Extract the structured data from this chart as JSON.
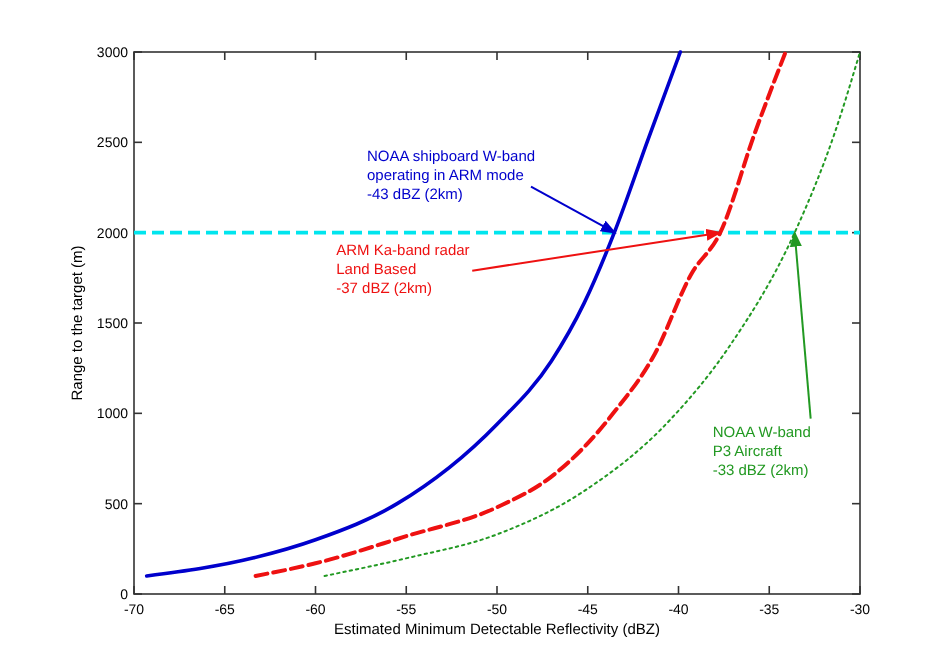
{
  "chart_data": {
    "type": "line",
    "xlabel": "Estimated Minimum Detectable Reflectivity (dBZ)",
    "ylabel": "Range to the target (m)",
    "xlim": [
      -70,
      -30
    ],
    "xticks": [
      -70,
      -65,
      -60,
      -55,
      -50,
      -45,
      -40,
      -35,
      -30
    ],
    "ylim": [
      0,
      3000
    ],
    "yticks": [
      0,
      500,
      1000,
      1500,
      2000,
      2500,
      3000
    ],
    "grid": false,
    "marker": "none",
    "series": [
      {
        "color": "#0000cc",
        "line_style": "solid",
        "x": [
          -69.3,
          -63.4,
          -60,
          -55.5,
          -50,
          -47,
          -45.2,
          -43.5,
          -41.7,
          -39.9
        ],
        "values": [
          100,
          200,
          300,
          500,
          940,
          1290,
          1610,
          2010,
          2510,
          3000
        ]
      },
      {
        "color": "#ee1111",
        "line_style": "dashed",
        "x": [
          -63.3,
          -60,
          -55,
          -50,
          -47,
          -44.5,
          -43.6,
          -41.3,
          -39.3,
          -37.7,
          -35.8,
          -34.1
        ],
        "values": [
          100,
          170,
          320,
          480,
          650,
          890,
          1000,
          1330,
          1770,
          2000,
          2550,
          3000
        ]
      },
      {
        "color": "#229922",
        "line_style": "dotted",
        "x": [
          -59.5,
          -54.9,
          -50,
          -45.2,
          -40.5,
          -37.2,
          -33.6,
          -31.4,
          -30
        ],
        "values": [
          100,
          200,
          330,
          570,
          960,
          1370,
          2000,
          2550,
          3000
        ]
      }
    ],
    "ref_lines": [
      {
        "axis": "y",
        "value": 2000,
        "color": "#00e5ee",
        "line_style": "dashed"
      }
    ],
    "annotations": [
      {
        "text": "NOAA shipboard W-band\noperating in ARM mode\n-43 dBZ (2km)",
        "x": -43.5,
        "y": 2000
      },
      {
        "text": "ARM Ka-band radar\nLand Based\n-37 dBZ (2km)",
        "x": -37.7,
        "y": 2000
      },
      {
        "text": "NOAA W-band\nP3 Aircraft\n-33 dBZ (2km)",
        "x": -33.6,
        "y": 2000
      }
    ]
  }
}
